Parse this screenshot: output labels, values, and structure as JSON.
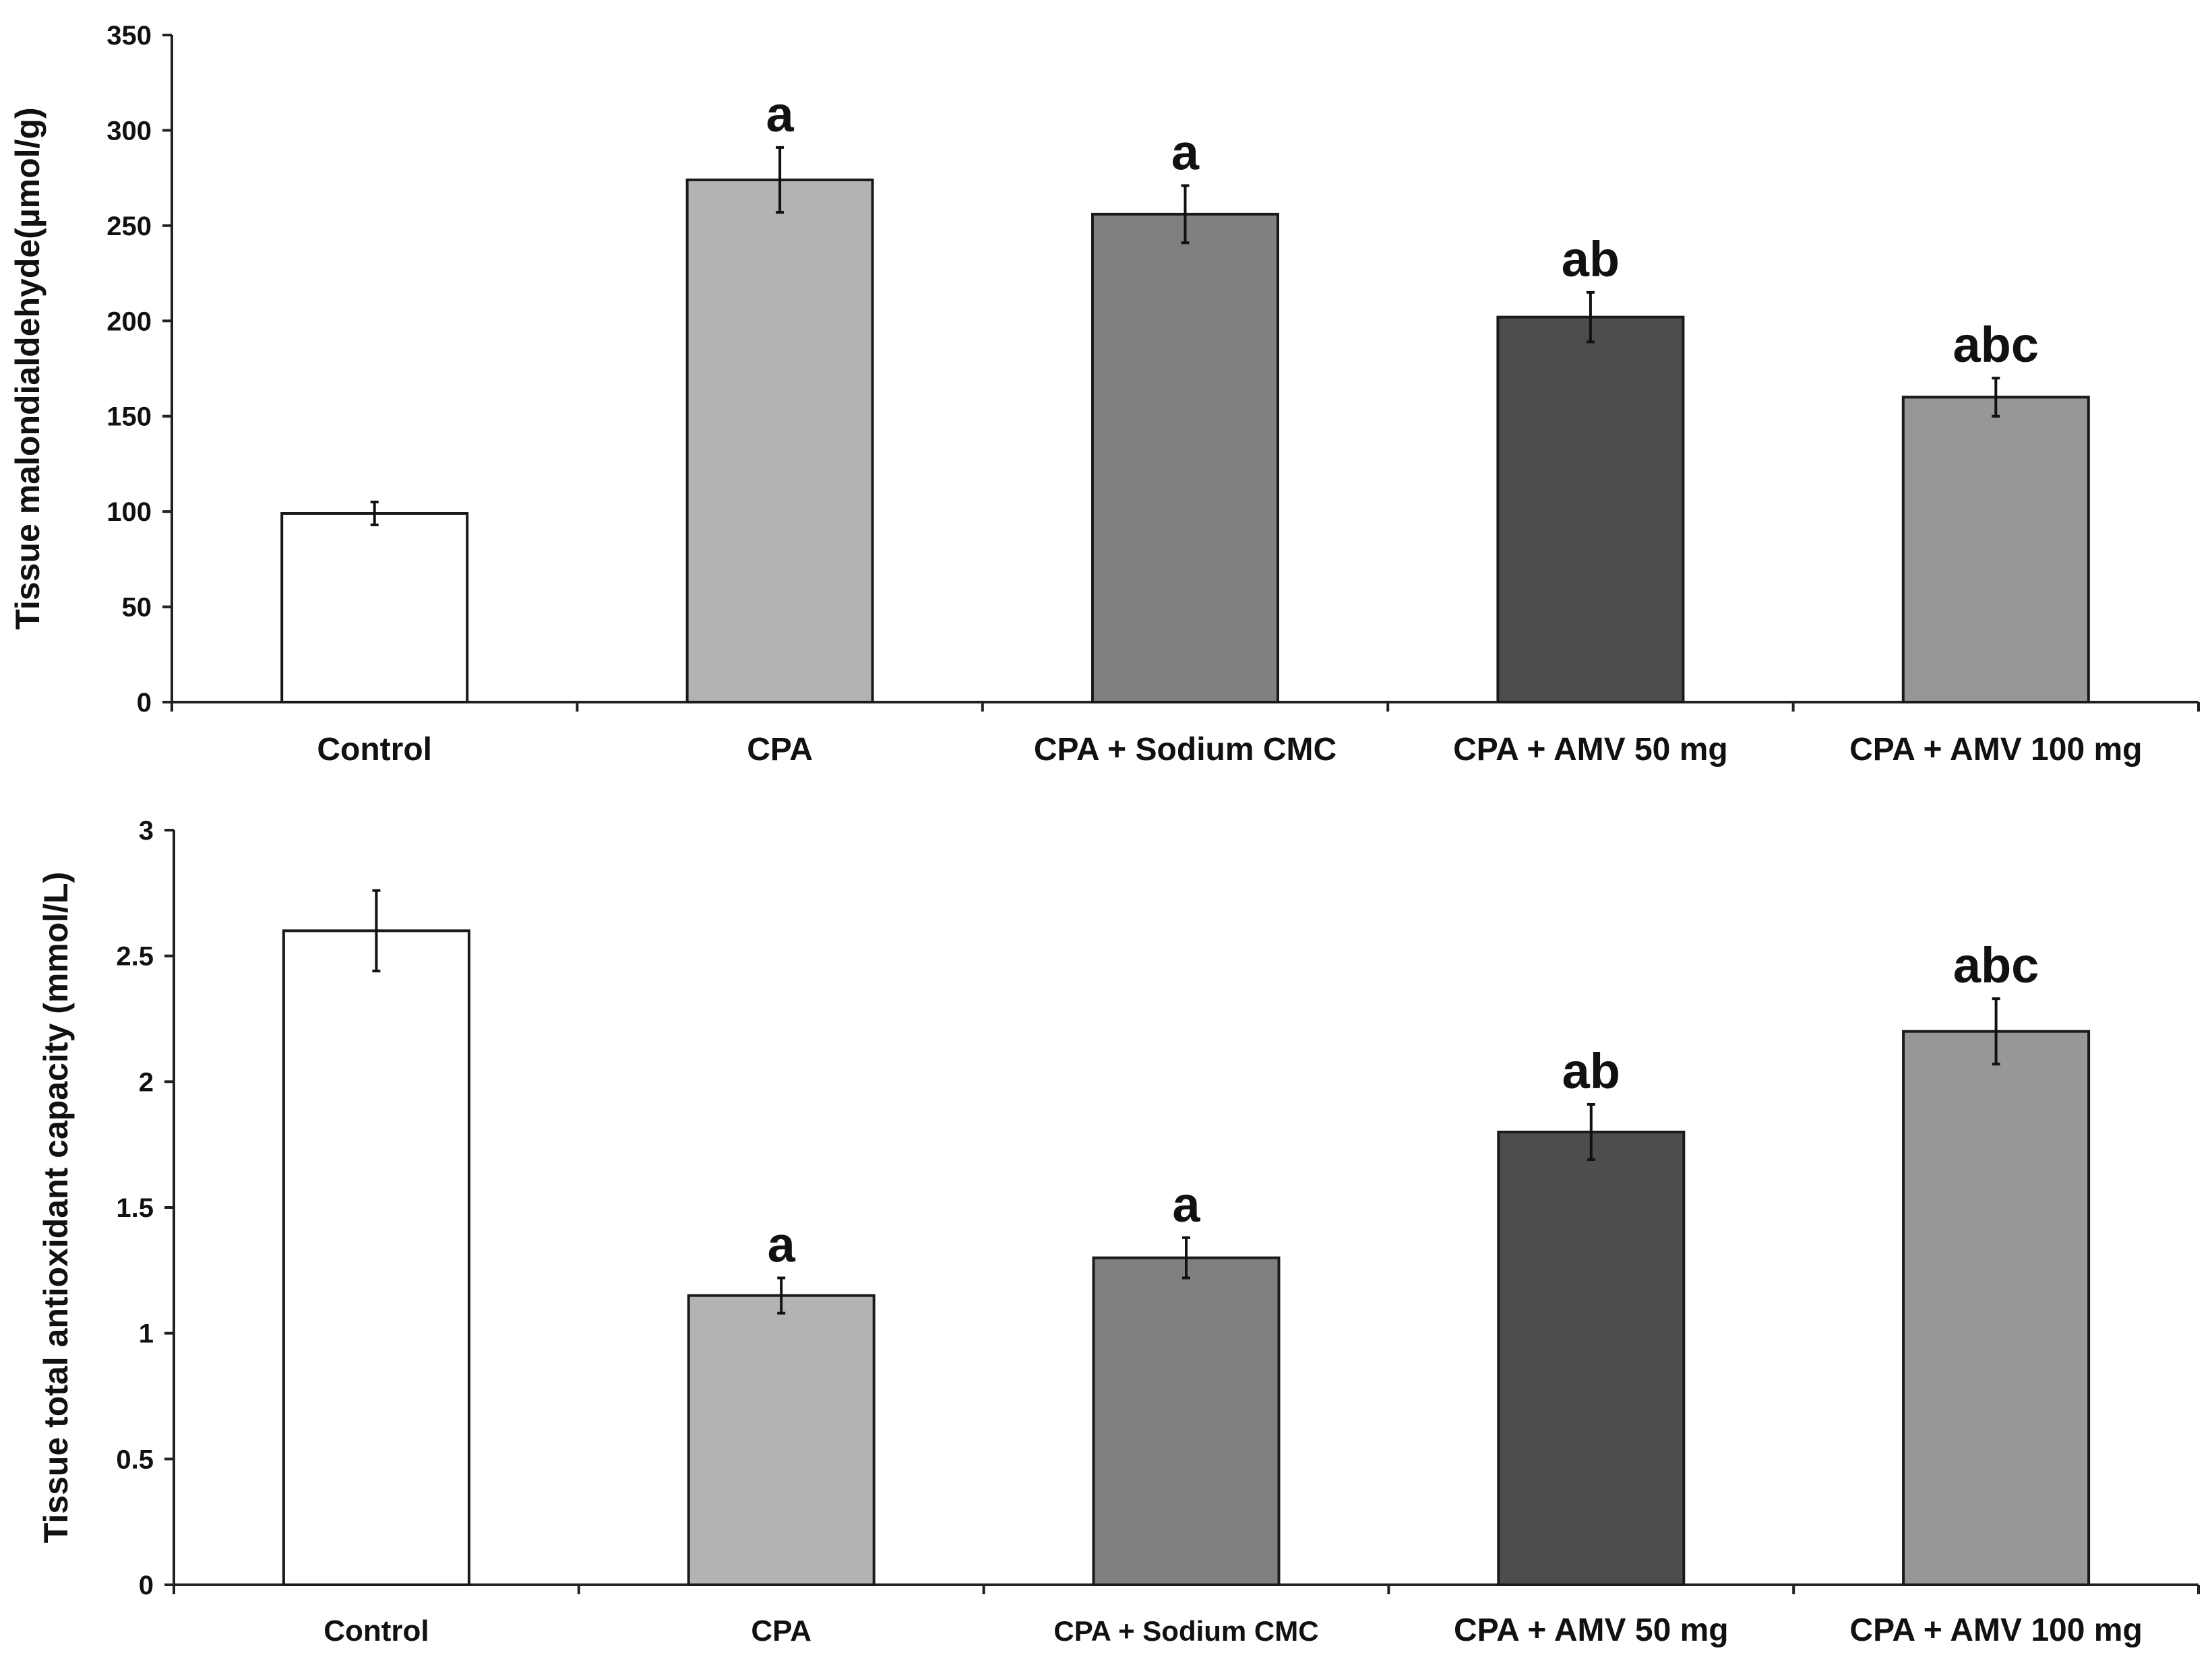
{
  "chart_data": [
    {
      "type": "bar",
      "title": "",
      "xlabel": "",
      "ylabel": "Tissue malondialdehyde(µmol/g)",
      "ylim": [
        0,
        350
      ],
      "yticks": [
        0,
        50,
        100,
        150,
        200,
        250,
        300,
        350
      ],
      "ytick_labels": [
        "0",
        "50",
        "100",
        "150",
        "200",
        "250",
        "300",
        "350"
      ],
      "grid": false,
      "categories": [
        "Control",
        "CPA",
        "CPA + Sodium CMC",
        "CPA + AMV 50 mg",
        "CPA + AMV 100 mg"
      ],
      "values": [
        99,
        274,
        256,
        202,
        160
      ],
      "errors": [
        6,
        17,
        15,
        13,
        10
      ],
      "significance": [
        "",
        "a",
        "a",
        "ab",
        "abc"
      ],
      "colors": [
        "#ffffff",
        "#b3b3b3",
        "#808080",
        "#4d4d4d",
        "#979797"
      ]
    },
    {
      "type": "bar",
      "title": "",
      "xlabel": "",
      "ylabel": "Tissue total antioxidant capacity (mmol/L)",
      "ylim": [
        0,
        3
      ],
      "yticks": [
        0,
        0.5,
        1,
        1.5,
        2,
        2.5,
        3
      ],
      "ytick_labels": [
        "0",
        "0.5",
        "1",
        "1.5",
        "2",
        "2.5",
        "3"
      ],
      "grid": false,
      "categories": [
        "Control",
        "CPA",
        "CPA + Sodium CMC",
        "CPA + AMV 50 mg",
        "CPA + AMV 100 mg"
      ],
      "values": [
        2.6,
        1.15,
        1.3,
        1.8,
        2.2
      ],
      "errors": [
        0.16,
        0.07,
        0.08,
        0.11,
        0.13
      ],
      "significance": [
        "",
        "a",
        "a",
        "ab",
        "abc"
      ],
      "colors": [
        "#ffffff",
        "#b3b3b3",
        "#808080",
        "#4d4d4d",
        "#979797"
      ]
    }
  ]
}
